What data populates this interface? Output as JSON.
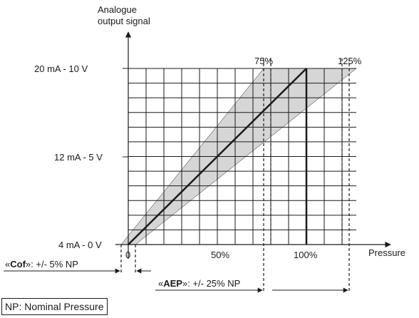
{
  "y_axis_title": [
    "Analogue",
    "output signal"
  ],
  "x_axis_title": "Pressure",
  "y_ticks": [
    "20 mA - 10 V",
    "12 mA - 5 V",
    "4 mA - 0 V"
  ],
  "x_ticks": [
    "0",
    "50%",
    "100%"
  ],
  "marker_labels": [
    "75%",
    "125%"
  ],
  "cof": {
    "prefix": "«",
    "key": "Cof",
    "suffix": "»: +/- 5% NP"
  },
  "aep": {
    "prefix": "«",
    "key": "AEP",
    "suffix": "»: +/- 25% NP"
  },
  "note": "NP: Nominal Pressure",
  "colors": {
    "band": "#d6d6d6",
    "lines": "#1a1a1a",
    "grid": "#1a1a1a"
  }
}
